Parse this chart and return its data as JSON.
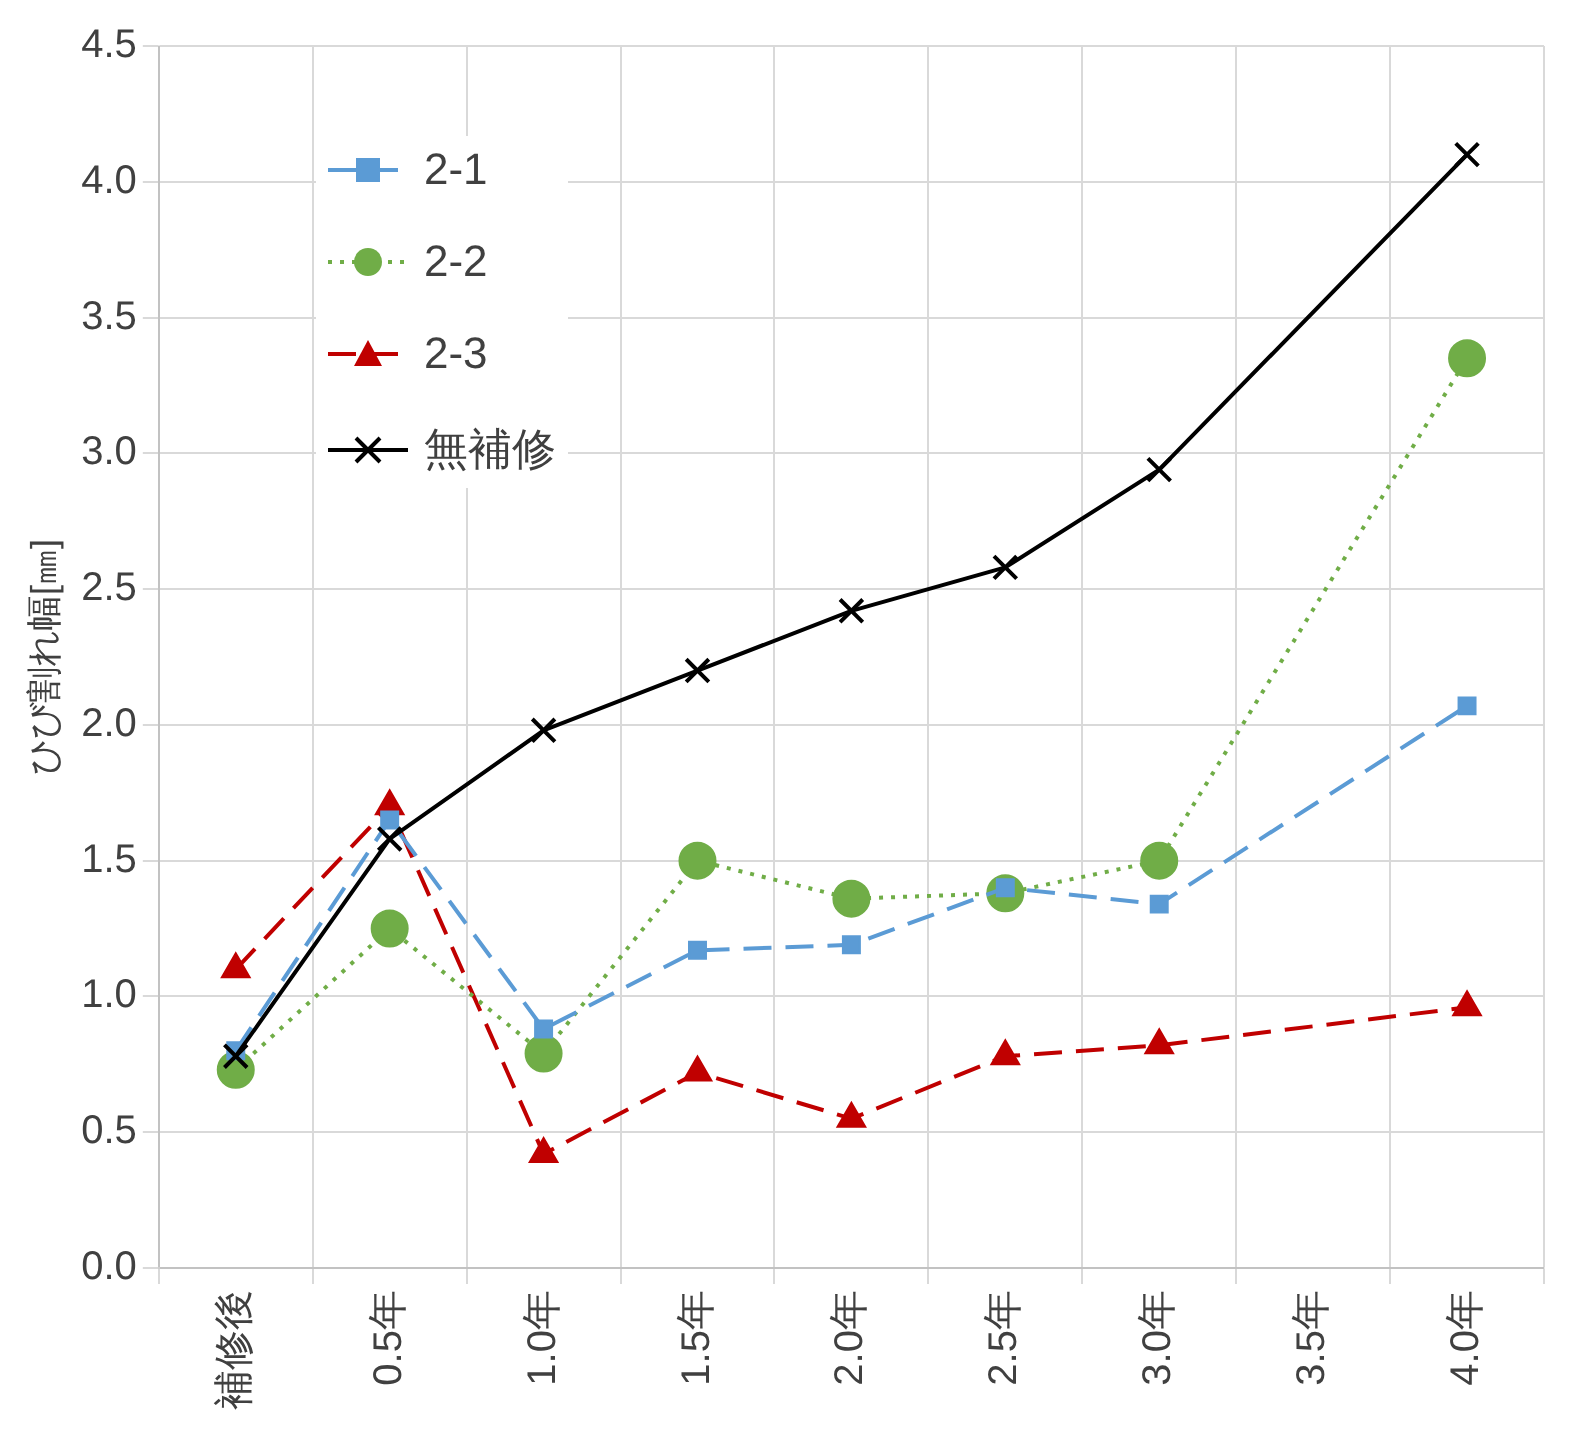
{
  "chart_data": {
    "type": "line",
    "ylabel": "ひび割れ幅[㎜]",
    "categories": [
      "補修後",
      "0.5年",
      "1.0年",
      "1.5年",
      "2.0年",
      "2.5年",
      "3.0年",
      "3.5年",
      "4.0年"
    ],
    "series": [
      {
        "name": "2-1",
        "color": "#5b9bd5",
        "marker": "square",
        "line_style": "dashed",
        "values": [
          0.8,
          1.65,
          0.88,
          1.17,
          1.19,
          1.4,
          1.34,
          null,
          2.07
        ]
      },
      {
        "name": "2-2",
        "color": "#70ad47",
        "marker": "circle",
        "line_style": "dotted",
        "values": [
          0.73,
          1.25,
          0.79,
          1.5,
          1.36,
          1.38,
          1.5,
          null,
          3.35
        ]
      },
      {
        "name": "2-3",
        "color": "#c00000",
        "marker": "triangle",
        "line_style": "dashed",
        "values": [
          1.1,
          1.7,
          0.42,
          0.72,
          0.55,
          0.78,
          0.82,
          null,
          0.96
        ]
      },
      {
        "name": "無補修",
        "color": "#000000",
        "marker": "cross",
        "line_style": "solid",
        "values": [
          0.78,
          1.58,
          1.98,
          2.2,
          2.42,
          2.58,
          2.94,
          null,
          4.1
        ]
      }
    ],
    "ylim": [
      0,
      4.5
    ],
    "yticks": [
      {
        "value": 0,
        "label": "0.0"
      },
      {
        "value": 0.5,
        "label": "0.5"
      },
      {
        "value": 1,
        "label": "1.0"
      },
      {
        "value": 1.5,
        "label": "1.5"
      },
      {
        "value": 2,
        "label": "2.0"
      },
      {
        "value": 2.5,
        "label": "2.5"
      },
      {
        "value": 3,
        "label": "3.0"
      },
      {
        "value": 3.5,
        "label": "3.5"
      },
      {
        "value": 4,
        "label": "4.0"
      },
      {
        "value": 4.5,
        "label": "4.5"
      }
    ],
    "grid": true,
    "legend": "top left"
  }
}
